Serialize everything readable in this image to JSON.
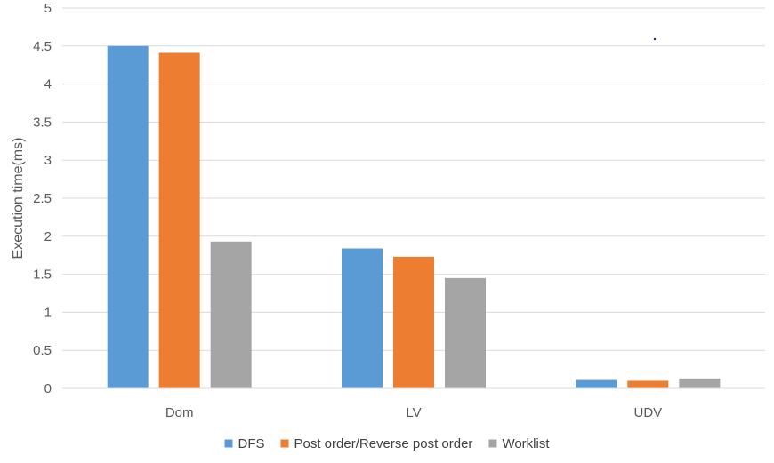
{
  "chart_data": {
    "type": "bar",
    "categories": [
      "Dom",
      "LV",
      "UDV"
    ],
    "series": [
      {
        "name": "DFS",
        "color": "#5B9BD5",
        "values": [
          4.5,
          1.84,
          0.11
        ]
      },
      {
        "name": "Post order/Reverse post order",
        "color": "#ED7D31",
        "values": [
          4.41,
          1.73,
          0.1
        ]
      },
      {
        "name": "Worklist",
        "color": "#A5A5A5",
        "values": [
          1.93,
          1.45,
          0.13
        ]
      }
    ],
    "ylabel": "Execution time(ms)",
    "ylim": [
      0,
      5
    ],
    "yticks": [
      "0",
      "0.5",
      "1",
      "1.5",
      "2",
      "2.5",
      "3",
      "3.5",
      "4",
      "4.5",
      "5"
    ],
    "grid": true,
    "legend_position": "bottom"
  }
}
